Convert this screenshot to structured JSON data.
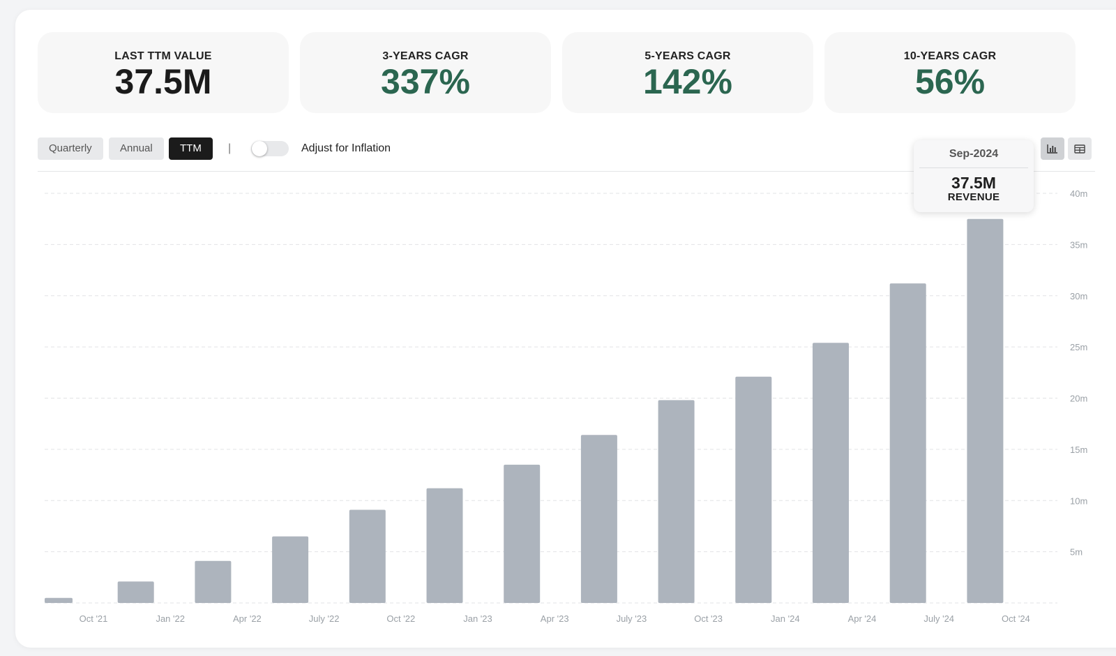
{
  "stats": [
    {
      "label": "LAST TTM VALUE",
      "value": "37.5M",
      "color": "#1b1b1b"
    },
    {
      "label": "3-YEARS CAGR",
      "value": "337%",
      "color": "#2b6650"
    },
    {
      "label": "5-YEARS CAGR",
      "value": "142%",
      "color": "#2b6650"
    },
    {
      "label": "10-YEARS CAGR",
      "value": "56%",
      "color": "#2b6650"
    }
  ],
  "toolbar": {
    "periods": [
      "Quarterly",
      "Annual",
      "TTM"
    ],
    "active_period": "TTM",
    "separator": "|",
    "inflation_label": "Adjust for Inflation",
    "inflation_enabled": false,
    "view_icons": [
      "bar-chart-icon",
      "table-icon"
    ],
    "active_view": "bar-chart-icon"
  },
  "tooltip": {
    "date": "Sep-2024",
    "value": "37.5M",
    "series": "REVENUE"
  },
  "chart_data": {
    "type": "bar",
    "x_tick_labels": [
      "Oct '21",
      "Jan '22",
      "Apr '22",
      "July '22",
      "Oct '22",
      "Jan '23",
      "Apr '23",
      "July '23",
      "Oct '23",
      "Jan '24",
      "Apr '24",
      "July '24",
      "Oct '24"
    ],
    "y_tick_labels": [
      "5m",
      "10m",
      "15m",
      "20m",
      "25m",
      "30m",
      "35m",
      "40m"
    ],
    "y_ticks": [
      5,
      10,
      15,
      20,
      25,
      30,
      35,
      40
    ],
    "ylim": [
      0,
      40
    ],
    "values": [
      0.5,
      2.1,
      4.1,
      6.5,
      9.1,
      11.2,
      13.5,
      16.4,
      19.8,
      22.1,
      25.4,
      31.2,
      37.5
    ],
    "bar_color": "#adb4bd",
    "grid": true,
    "highlighted_value": 37.5
  }
}
